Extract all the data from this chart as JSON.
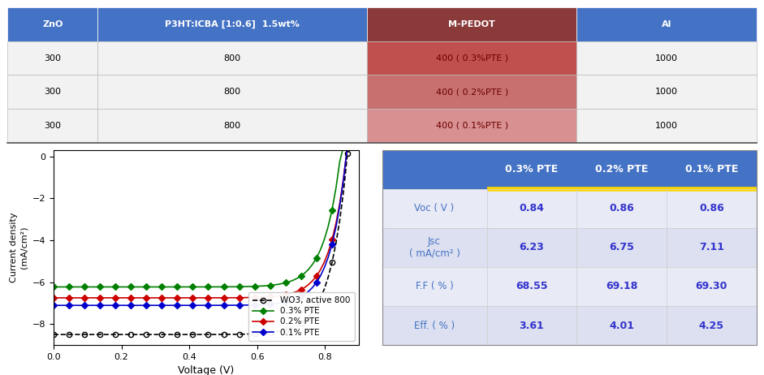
{
  "top_table": {
    "headers": [
      "ZnO",
      "P3HT:ICBA [1:0.6]  1.5wt%",
      "M-PEDOT",
      "Al"
    ],
    "header_colors": [
      "#4472c4",
      "#4472c4",
      "#8b3a3a",
      "#4472c4"
    ],
    "rows": [
      [
        "300",
        "800",
        "400 ( 0.3%PTE )",
        "1000"
      ],
      [
        "300",
        "800",
        "400 ( 0.2%PTE )",
        "1000"
      ],
      [
        "300",
        "800",
        "400 ( 0.1%PTE )",
        "1000"
      ]
    ],
    "row_highlight_col": 2,
    "row_highlight_colors": [
      "#c0504d",
      "#c87070",
      "#d99090"
    ]
  },
  "right_table": {
    "col_headers": [
      "",
      "0.3% PTE",
      "0.2% PTE",
      "0.1% PTE"
    ],
    "header_color": "#4472c4",
    "rows": [
      [
        "Voc ( V )",
        "0.84",
        "0.86",
        "0.86"
      ],
      [
        "Jsc\n( mA/cm² )",
        "6.23",
        "6.75",
        "7.11"
      ],
      [
        "F.F ( % )",
        "68.55",
        "69.18",
        "69.30"
      ],
      [
        "Eff. ( % )",
        "3.61",
        "4.01",
        "4.25"
      ]
    ],
    "row_colors": [
      "#e8eaf6",
      "#dce0f0",
      "#e8eaf6",
      "#dce0f0"
    ],
    "label_color": "#4472c4",
    "value_color": "#3333cc"
  },
  "plot": {
    "xlabel": "Voltage (V)",
    "ylabel": "Current density\n(mA/cm²)",
    "xlim": [
      0.0,
      0.9
    ],
    "ylim": [
      -9.0,
      0.3
    ],
    "yticks": [
      0,
      -2,
      -4,
      -6,
      -8
    ],
    "xticks": [
      0.0,
      0.2,
      0.4,
      0.6,
      0.8
    ],
    "curves": [
      {
        "label": "WO3, active 800",
        "color": "black",
        "jsc": 8.5,
        "voc": 0.865,
        "n": 1.9,
        "marker": "o",
        "ls": "--",
        "mfc": "none"
      },
      {
        "label": "0.3% PTE",
        "color": "#008000",
        "jsc": 6.23,
        "voc": 0.845,
        "n": 1.8,
        "marker": "D",
        "ls": "-",
        "mfc": "#008000"
      },
      {
        "label": "0.2% PTE",
        "color": "#cc0000",
        "jsc": 6.75,
        "voc": 0.862,
        "n": 1.8,
        "marker": "D",
        "ls": "-",
        "mfc": "#cc0000"
      },
      {
        "label": "0.1% PTE",
        "color": "#0000cc",
        "jsc": 7.11,
        "voc": 0.862,
        "n": 1.8,
        "marker": "D",
        "ls": "-",
        "mfc": "#0000cc"
      }
    ]
  }
}
